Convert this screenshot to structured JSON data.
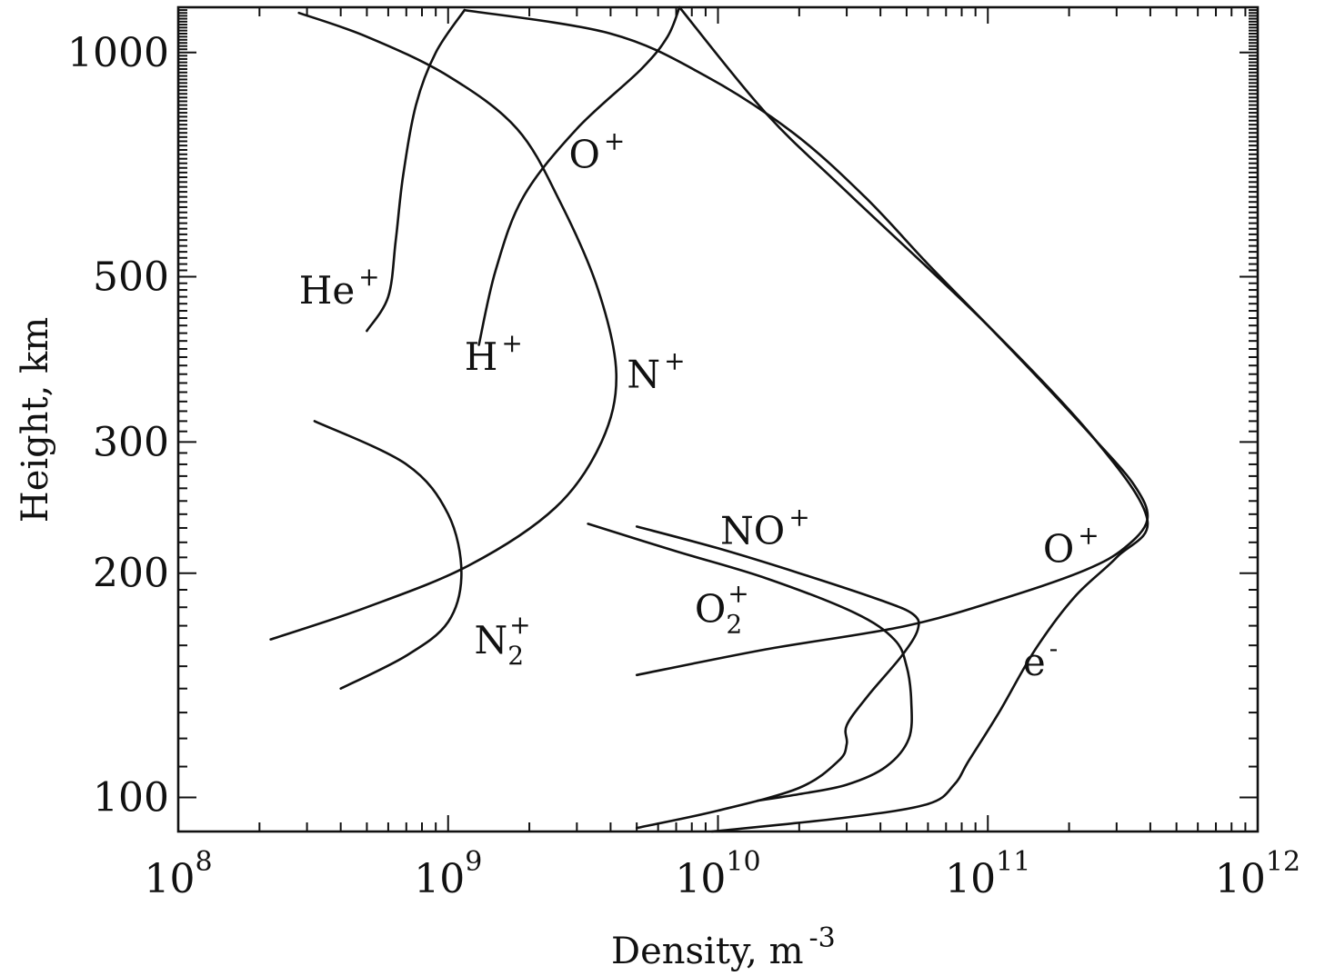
{
  "chart_data": {
    "type": "line",
    "title": "",
    "xlabel": {
      "main": "Density, m",
      "sup": "-3"
    },
    "ylabel": "Height, km",
    "xscale": "log",
    "yscale": "log",
    "xlim": [
      100000000.0,
      1000000000000.0
    ],
    "ylim": [
      90,
      1150
    ],
    "grid": false,
    "legend": "none (labels placed next to curves)",
    "x_ticks": [
      {
        "base": "10",
        "exp": "8"
      },
      {
        "base": "10",
        "exp": "9"
      },
      {
        "base": "10",
        "exp": "10"
      },
      {
        "base": "10",
        "exp": "11"
      },
      {
        "base": "10",
        "exp": "12"
      }
    ],
    "y_ticks": [
      "100",
      "200",
      "300",
      "500",
      "1000"
    ],
    "y_tick_values": [
      100,
      200,
      300,
      500,
      1000
    ],
    "series": [
      {
        "name": "O",
        "sup": "+",
        "points": [
          [
            5000000000.0,
            146
          ],
          [
            15000000000.0,
            158
          ],
          [
            50000000000.0,
            170
          ],
          [
            120000000000.0,
            186
          ],
          [
            230000000000.0,
            202
          ],
          [
            320000000000.0,
            216
          ],
          [
            390000000000.0,
            236
          ],
          [
            350000000000.0,
            262
          ],
          [
            250000000000.0,
            302
          ],
          [
            160000000000.0,
            360
          ],
          [
            100000000000.0,
            430
          ],
          [
            60000000000.0,
            520
          ],
          [
            35000000000.0,
            640
          ],
          [
            19000000000.0,
            780
          ],
          [
            9000000000.0,
            930
          ],
          [
            4000000000.0,
            1060
          ],
          [
            1150000000.0,
            1140
          ]
        ]
      },
      {
        "name": "e",
        "sup": "-",
        "points": [
          [
            9500000000.0,
            90
          ],
          [
            30000000000.0,
            94
          ],
          [
            60000000000.0,
            98
          ],
          [
            75000000000.0,
            104
          ],
          [
            85000000000.0,
            112
          ],
          [
            110000000000.0,
            130
          ],
          [
            150000000000.0,
            158
          ],
          [
            210000000000.0,
            186
          ],
          [
            300000000000.0,
            210
          ],
          [
            390000000000.0,
            236
          ],
          [
            250000000000.0,
            302
          ],
          [
            100000000000.0,
            430
          ],
          [
            30000000000.0,
            650
          ],
          [
            15000000000.0,
            830
          ],
          [
            7200000000.0,
            1150
          ]
        ]
      },
      {
        "name": "He",
        "sup": "+",
        "points": [
          [
            500000000.0,
            423
          ],
          [
            600000000.0,
            470
          ],
          [
            640000000.0,
            560
          ],
          [
            680000000.0,
            680
          ],
          [
            760000000.0,
            850
          ],
          [
            900000000.0,
            1000
          ],
          [
            1150000000.0,
            1140
          ]
        ]
      },
      {
        "name": "H",
        "sup": "+",
        "points": [
          [
            1300000000.0,
            405
          ],
          [
            1500000000.0,
            510
          ],
          [
            1900000000.0,
            640
          ],
          [
            3000000000.0,
            790
          ],
          [
            5200000000.0,
            950
          ],
          [
            6500000000.0,
            1050
          ],
          [
            7200000000.0,
            1150
          ]
        ]
      },
      {
        "name": "N",
        "sup": "+",
        "points": [
          [
            220000000.0,
            163
          ],
          [
            500000000.0,
            180
          ],
          [
            1200000000.0,
            205
          ],
          [
            2500000000.0,
            245
          ],
          [
            3700000000.0,
            300
          ],
          [
            4200000000.0,
            370
          ],
          [
            3600000000.0,
            480
          ],
          [
            2600000000.0,
            630
          ],
          [
            1800000000.0,
            790
          ],
          [
            1000000000.0,
            930
          ],
          [
            500000000.0,
            1050
          ],
          [
            280000000.0,
            1130
          ]
        ]
      },
      {
        "name": "N",
        "sub": "2",
        "sup": "+",
        "points": [
          [
            400000000.0,
            140
          ],
          [
            700000000.0,
            155
          ],
          [
            1000000000.0,
            172
          ],
          [
            1120000000.0,
            200
          ],
          [
            1000000000.0,
            240
          ],
          [
            700000000.0,
            280
          ],
          [
            320000000.0,
            320
          ]
        ]
      },
      {
        "name": "NO",
        "sup": "+",
        "points": [
          [
            5000000000.0,
            231
          ],
          [
            10000000000.0,
            216
          ],
          [
            20000000000.0,
            200
          ],
          [
            40000000000.0,
            184
          ],
          [
            53000000000.0,
            176
          ],
          [
            55000000000.0,
            168
          ],
          [
            48000000000.0,
            155
          ],
          [
            36000000000.0,
            137
          ],
          [
            30000000000.0,
            125
          ],
          [
            30000000000.0,
            118
          ],
          [
            28000000000.0,
            112
          ],
          [
            20000000000.0,
            103
          ],
          [
            10000000000.0,
            96
          ],
          [
            5000000000.0,
            91
          ]
        ]
      },
      {
        "name": "O",
        "sub": "2",
        "sup": "+",
        "points": [
          [
            3300000000.0,
            233
          ],
          [
            7000000000.0,
            214
          ],
          [
            15000000000.0,
            197
          ],
          [
            32000000000.0,
            177
          ],
          [
            45000000000.0,
            163
          ],
          [
            50000000000.0,
            150
          ],
          [
            52000000000.0,
            135
          ],
          [
            51000000000.0,
            120
          ],
          [
            42000000000.0,
            110
          ],
          [
            30000000000.0,
            104
          ],
          [
            20000000000.0,
            101
          ],
          [
            14000000000.0,
            99
          ]
        ]
      }
    ]
  }
}
